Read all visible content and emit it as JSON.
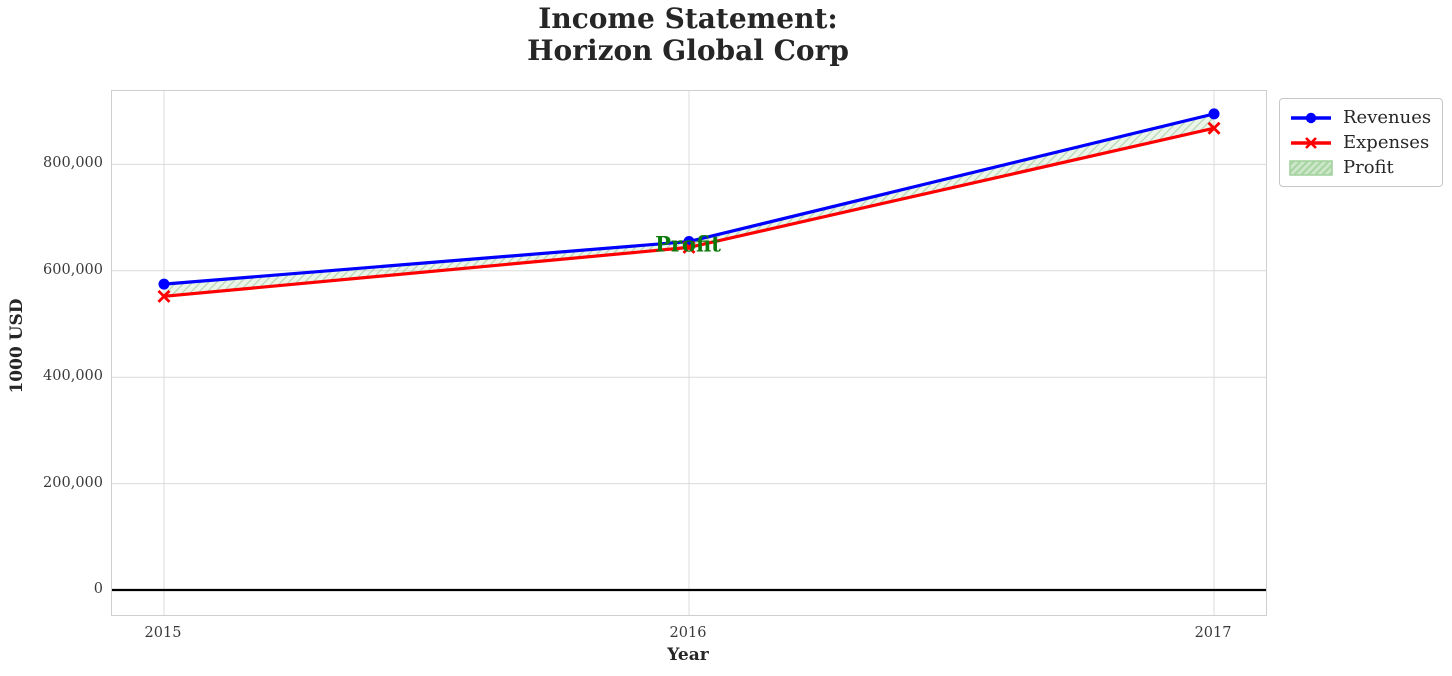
{
  "figure": {
    "title_line1": "Income Statement:",
    "title_line2": "Horizon Global Corp"
  },
  "chart_data": {
    "type": "line",
    "title": "Income Statement:\nHorizon Global Corp",
    "xlabel": "Year",
    "ylabel": "1000 USD",
    "x": [
      2015,
      2016,
      2017
    ],
    "series": [
      {
        "name": "Revenues",
        "values": [
          575000,
          655000,
          895000
        ],
        "color": "#0000ff",
        "marker": "circle"
      },
      {
        "name": "Expenses",
        "values": [
          552000,
          644000,
          868000
        ],
        "color": "#ff0000",
        "marker": "x"
      }
    ],
    "fill_between": {
      "name": "Profit",
      "between": [
        "Revenues",
        "Expenses"
      ],
      "face_color": "rgba(146,197,141,0.18)",
      "hatch_color": "rgba(146,197,141,0.6)",
      "legend_face_color": "#cde6c9",
      "legend_hatch_color": "#a5d4a0",
      "legend_edge_color": "#9fcf9a"
    },
    "annotation": {
      "text": "Profit",
      "x": 2016,
      "y": 648000,
      "color": "#0a7a0a"
    },
    "xlim": [
      2014.901,
      2017.099
    ],
    "ylim": [
      -47000,
      938000
    ],
    "xticks": [
      {
        "value": 2015,
        "label": "2015"
      },
      {
        "value": 2016,
        "label": "2016"
      },
      {
        "value": 2017,
        "label": "2017"
      }
    ],
    "yticks": [
      {
        "value": 0,
        "label": "0"
      },
      {
        "value": 200000,
        "label": "200,000"
      },
      {
        "value": 400000,
        "label": "400,000"
      },
      {
        "value": 600000,
        "label": "600,000"
      },
      {
        "value": 800000,
        "label": "800,000"
      }
    ],
    "zero_line": {
      "value": 0,
      "color": "#000000"
    },
    "grid": true,
    "grid_color": "#dcdcdc",
    "legend_position": "outside-top-right",
    "legend_entries": [
      "Revenues",
      "Expenses",
      "Profit"
    ]
  }
}
